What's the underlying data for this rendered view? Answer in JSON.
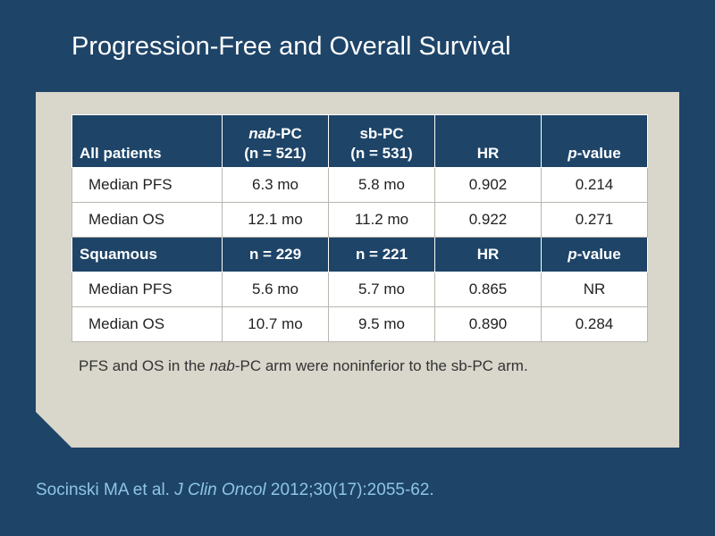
{
  "title": "Progression-Free and Overall Survival",
  "table": {
    "header": {
      "label": "All patients",
      "nab_label_italic": "nab",
      "nab_label_rest": "-PC",
      "nab_n": "(n = 521)",
      "sb_label": "sb-PC",
      "sb_n": "(n = 531)",
      "hr": "HR",
      "p_italic": "p",
      "p_rest": "-value"
    },
    "all_rows": [
      {
        "label": "Median PFS",
        "nab": "6.3 mo",
        "sb": "5.8 mo",
        "hr": "0.902",
        "p": "0.214"
      },
      {
        "label": "Median OS",
        "nab": "12.1 mo",
        "sb": "11.2 mo",
        "hr": "0.922",
        "p": "0.271"
      }
    ],
    "squamous_header": {
      "label": "Squamous",
      "nab_n": "n = 229",
      "sb_n": "n = 221",
      "hr": "HR",
      "p_italic": "p",
      "p_rest": "-value"
    },
    "squamous_rows": [
      {
        "label": "Median PFS",
        "nab": "5.6 mo",
        "sb": "5.7 mo",
        "hr": "0.865",
        "p": "NR"
      },
      {
        "label": "Median OS",
        "nab": "10.7 mo",
        "sb": "9.5 mo",
        "hr": "0.890",
        "p": "0.284"
      }
    ]
  },
  "footnote": {
    "before": "PFS and OS in the ",
    "italic": "nab",
    "after": "-PC arm were noninferior to the sb-PC arm."
  },
  "citation": {
    "before": "Socinski MA et al. ",
    "journal": "J Clin Oncol",
    "after": " 2012;30(17):2055-62."
  },
  "colors": {
    "background": "#1e4468",
    "panel": "#d9d6cb",
    "header_fill": "#1e4468",
    "citation_text": "#8ec5e6"
  }
}
